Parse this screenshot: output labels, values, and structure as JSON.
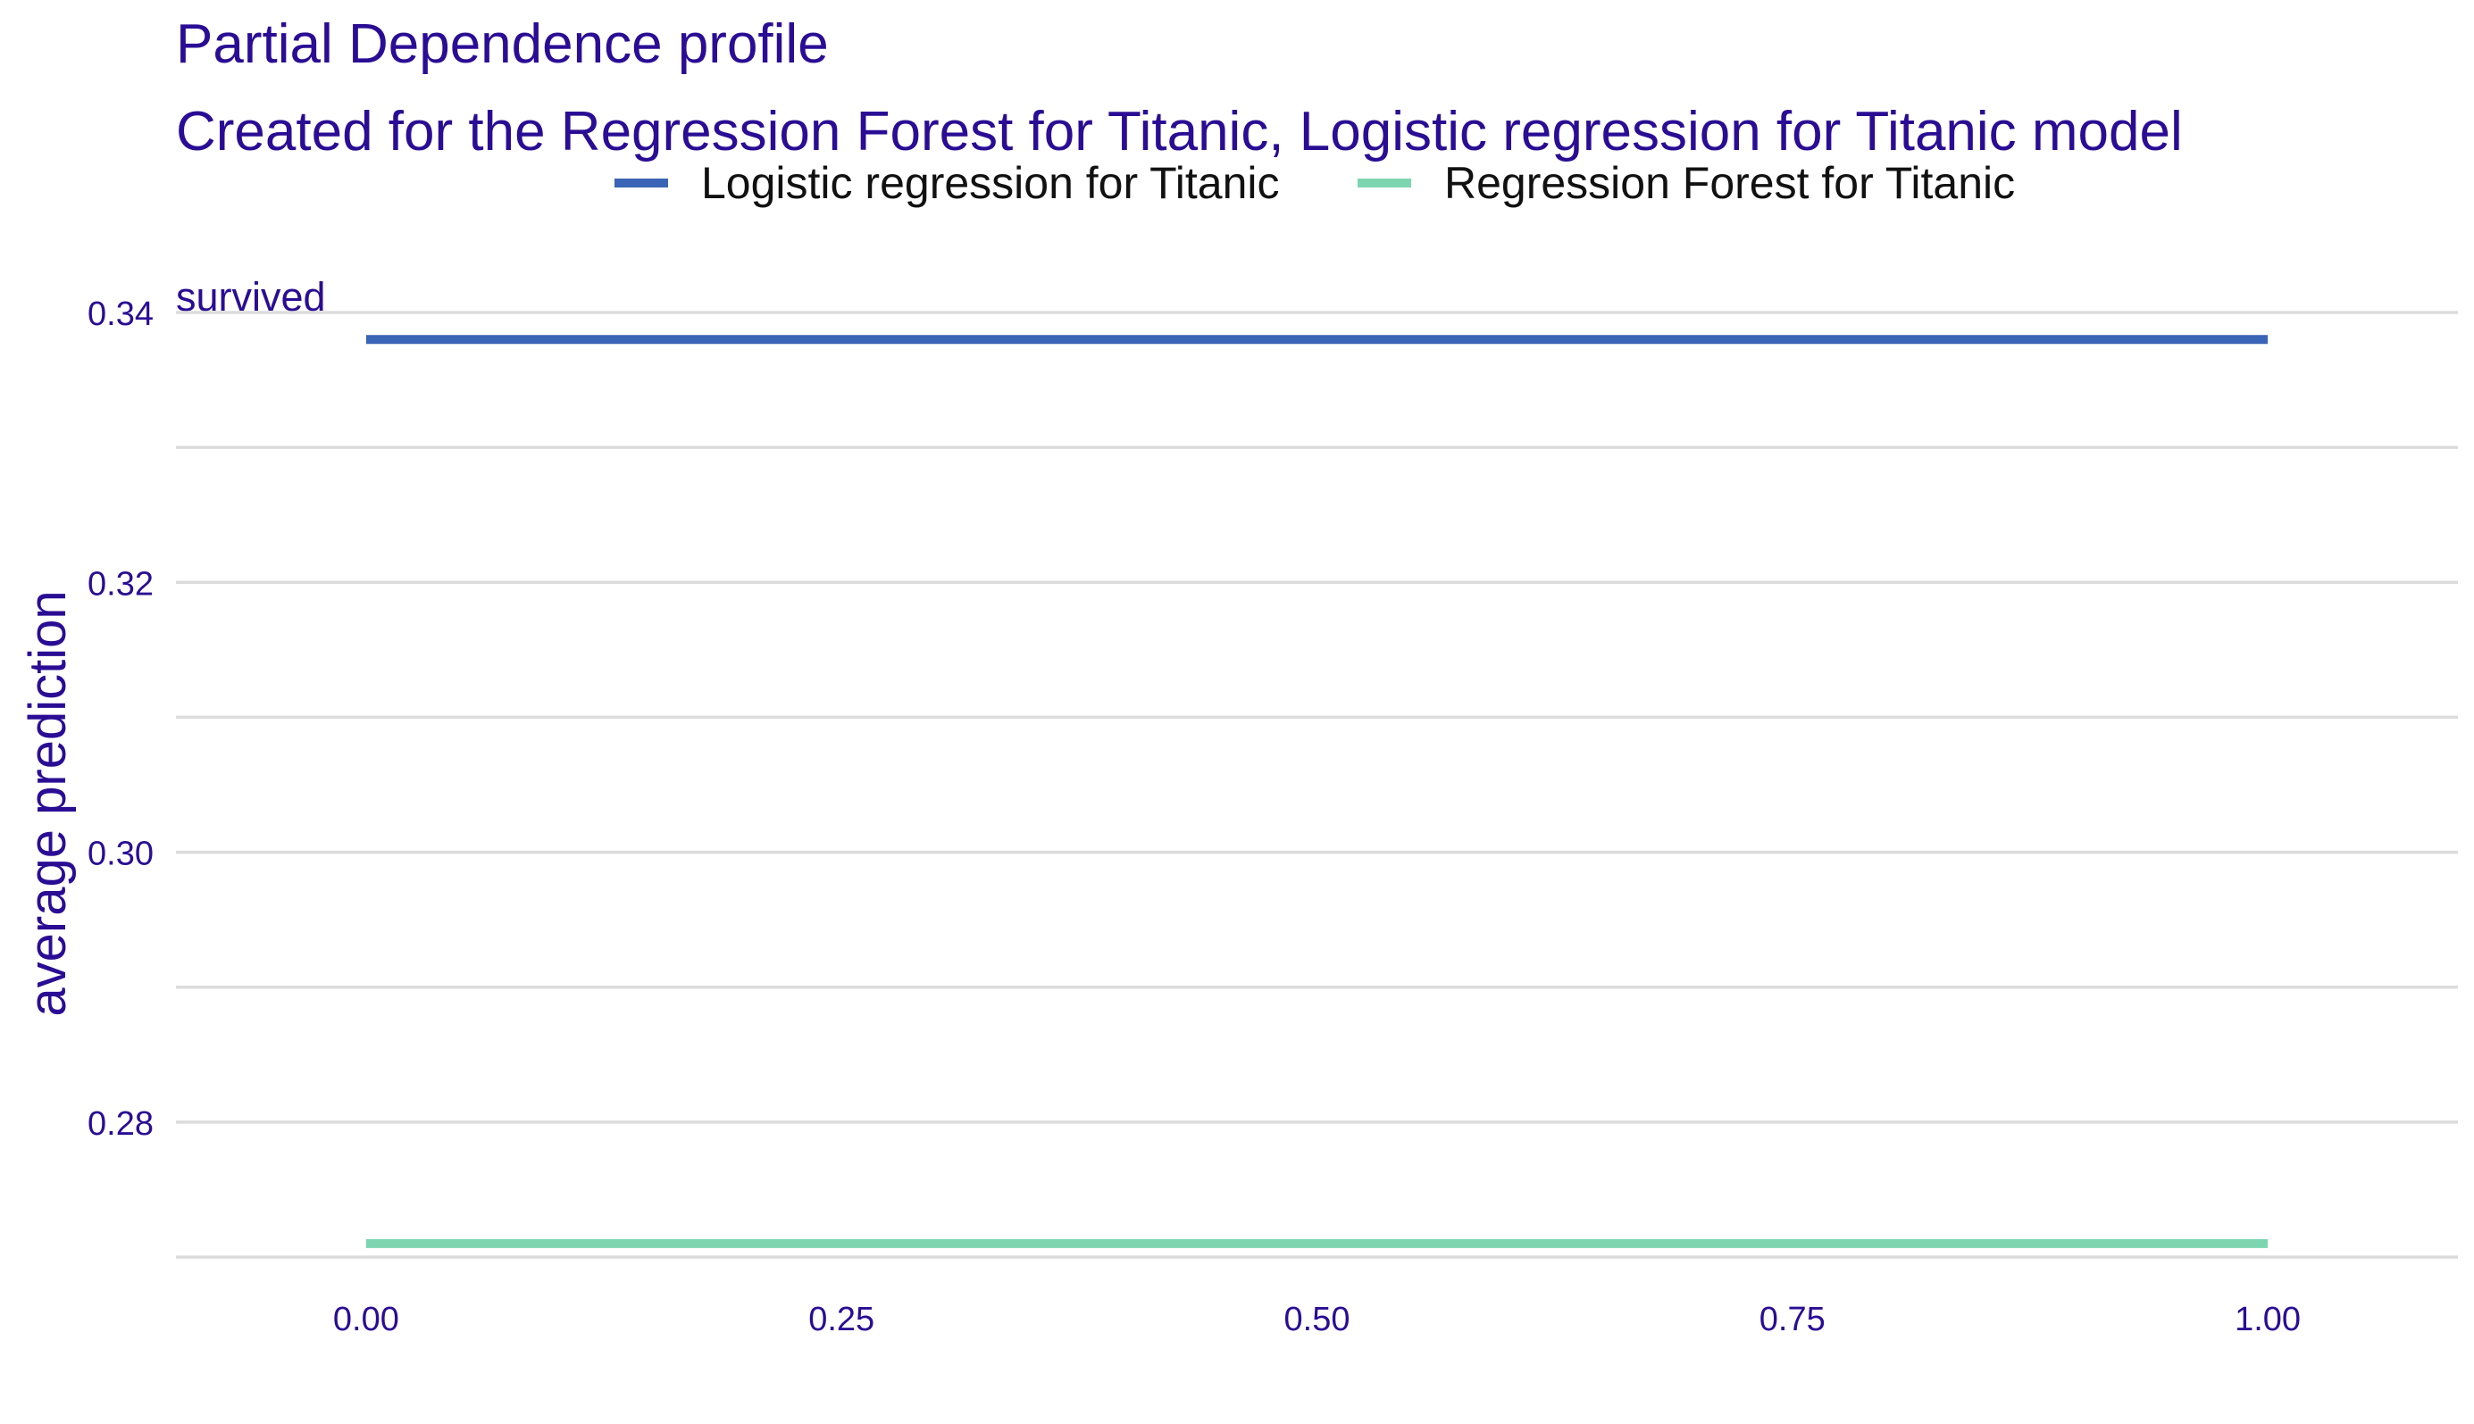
{
  "chart_data": {
    "type": "line",
    "title": "Partial Dependence profile",
    "subtitle": "Created for the Regression Forest for Titanic, Logistic regression for Titanic model",
    "panel_label": "survived",
    "xlabel": "",
    "ylabel": "average prediction",
    "xlim": [
      -0.1,
      1.1
    ],
    "ylim": [
      0.27,
      0.34
    ],
    "x_ticks": [
      "0.00",
      "0.25",
      "0.50",
      "0.75",
      "1.00"
    ],
    "x_tick_values": [
      0,
      0.25,
      0.5,
      0.75,
      1
    ],
    "y_ticks": [
      "0.28",
      "0.30",
      "0.32",
      "0.34"
    ],
    "y_tick_values": [
      0.28,
      0.3,
      0.32,
      0.34
    ],
    "y_minor_gridlines": [
      0.27,
      0.29,
      0.31,
      0.33
    ],
    "grid": true,
    "legend_position": "top",
    "series": [
      {
        "name": "Logistic regression for Titanic",
        "color": "#3a64b5",
        "x": [
          0,
          0.25,
          0.5,
          0.75,
          1
        ],
        "y": [
          0.338,
          0.338,
          0.338,
          0.338,
          0.338
        ]
      },
      {
        "name": "Regression Forest for Titanic",
        "color": "#7dd5b0",
        "x": [
          0,
          0.25,
          0.5,
          0.75,
          1
        ],
        "y": [
          0.271,
          0.271,
          0.271,
          0.271,
          0.271
        ]
      }
    ]
  }
}
